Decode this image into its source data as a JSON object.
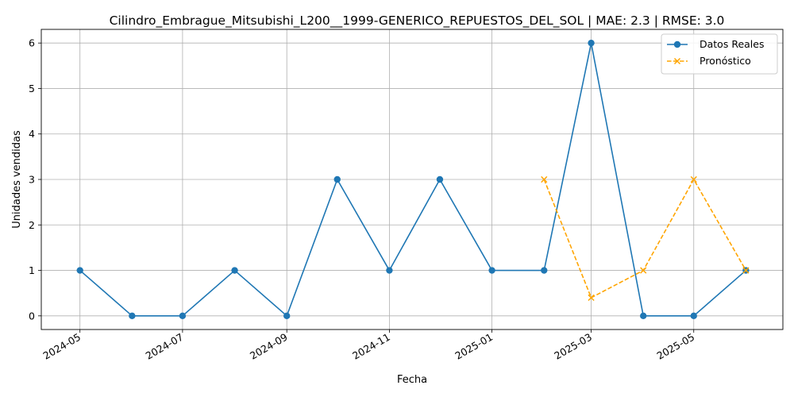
{
  "chart_data": {
    "type": "line",
    "title": "Cilindro_Embrague_Mitsubishi_L200__1999-GENERICO_REPUESTOS_DEL_SOL | MAE: 2.3 | RMSE: 3.0",
    "xlabel": "Fecha",
    "ylabel": "Unidades vendidas",
    "xlim": [
      "2024-04-08",
      "2025-06-23"
    ],
    "ylim": [
      -0.3,
      6.3
    ],
    "grid": true,
    "legend_position": "top-right",
    "x_ticks": [
      "2024-05-01",
      "2024-07-01",
      "2024-09-01",
      "2024-11-01",
      "2025-01-01",
      "2025-03-01",
      "2025-05-01"
    ],
    "x_tick_labels": [
      "2024-05",
      "2024-07",
      "2024-09",
      "2024-11",
      "2025-01",
      "2025-03",
      "2025-05"
    ],
    "y_ticks": [
      0,
      1,
      2,
      3,
      4,
      5,
      6
    ],
    "y_tick_labels": [
      "0",
      "1",
      "2",
      "3",
      "4",
      "5",
      "6"
    ],
    "series": [
      {
        "name": "Datos Reales",
        "color": "#1f77b4",
        "marker": "circle",
        "line_style": "solid",
        "x": [
          "2024-05-01",
          "2024-06-01",
          "2024-07-01",
          "2024-08-01",
          "2024-09-01",
          "2024-10-01",
          "2024-11-01",
          "2024-12-01",
          "2025-01-01",
          "2025-02-01",
          "2025-03-01",
          "2025-04-01",
          "2025-05-01",
          "2025-06-01"
        ],
        "values": [
          1,
          0,
          0,
          1,
          0,
          3,
          1,
          3,
          1,
          1,
          6,
          0,
          0,
          1
        ]
      },
      {
        "name": "Pronóstico",
        "color": "#ffa500",
        "marker": "x",
        "line_style": "dashed",
        "x": [
          "2025-02-01",
          "2025-03-01",
          "2025-04-01",
          "2025-05-01",
          "2025-06-01"
        ],
        "values": [
          3,
          0.4,
          1,
          3,
          1
        ]
      }
    ]
  }
}
